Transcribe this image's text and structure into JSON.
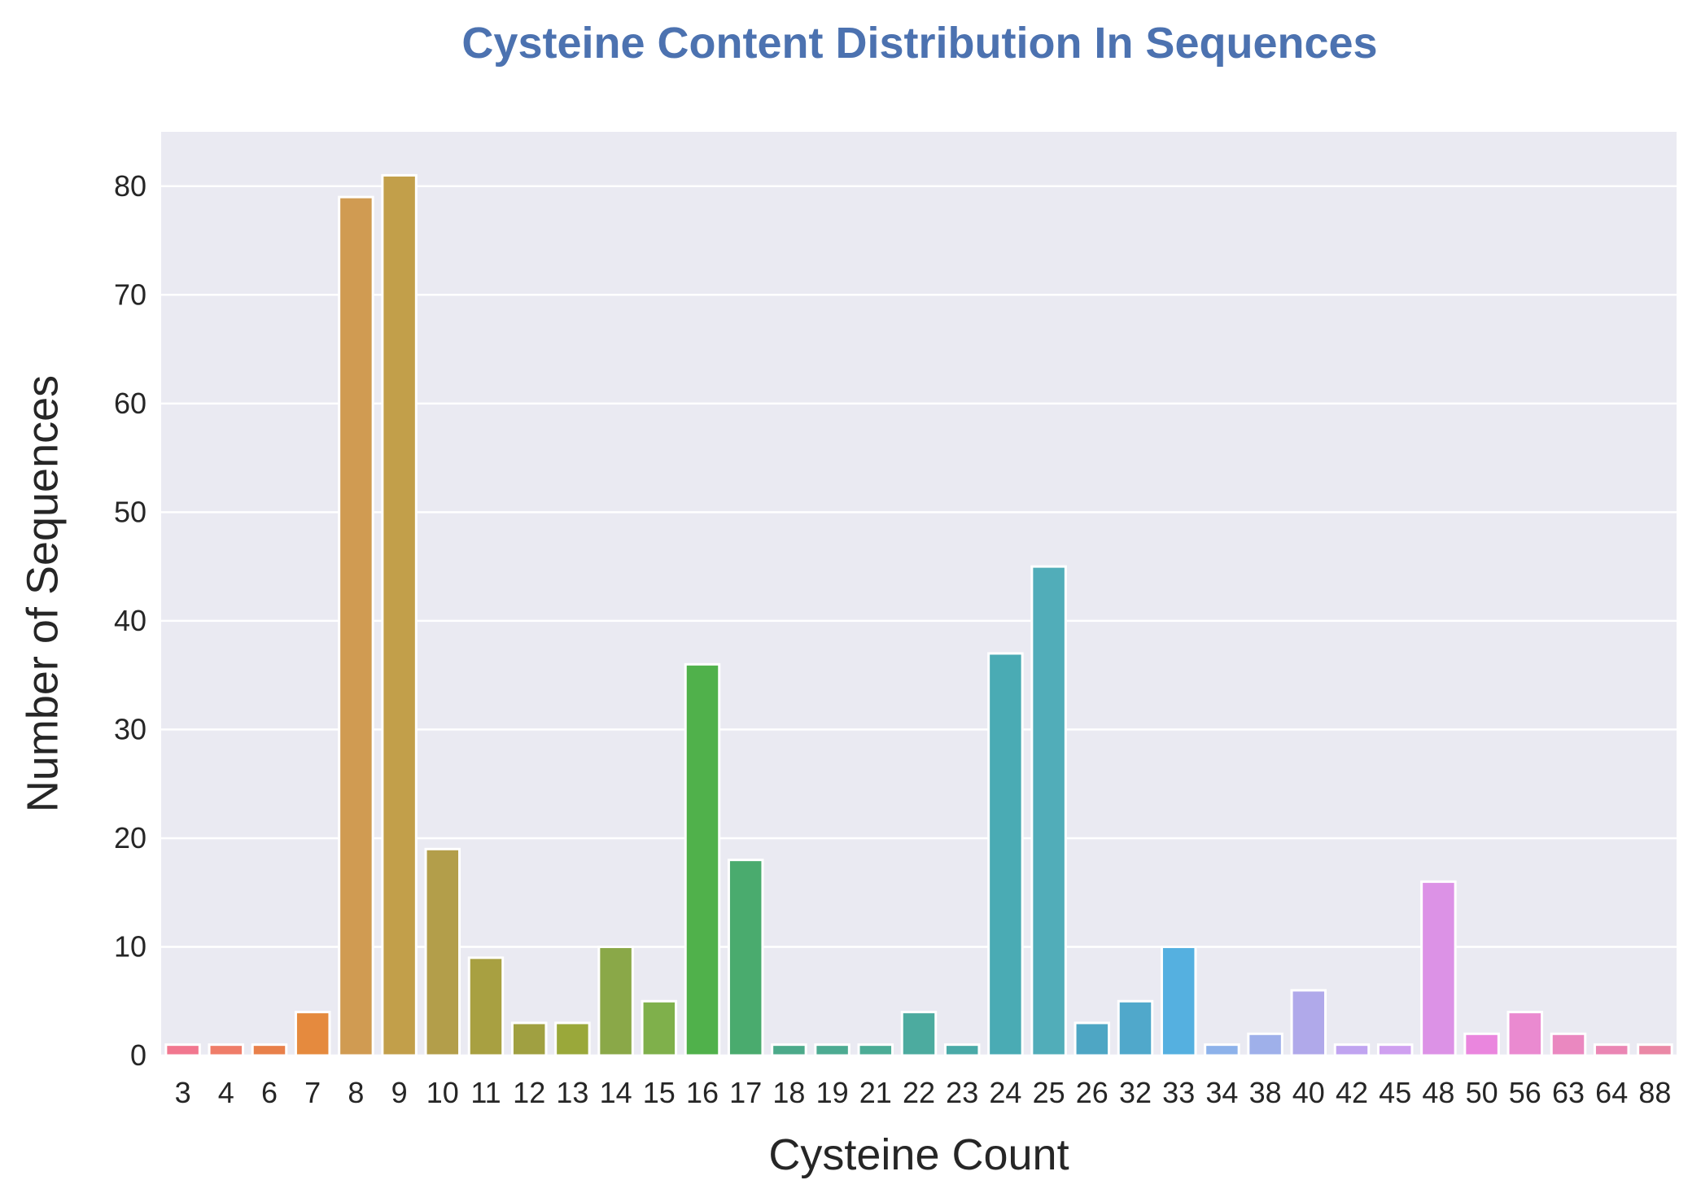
{
  "chart_data": {
    "type": "bar",
    "title": "Cysteine Content Distribution In Sequences",
    "xlabel": "Cysteine Count",
    "ylabel": "Number of Sequences",
    "categories": [
      "3",
      "4",
      "6",
      "7",
      "8",
      "9",
      "10",
      "11",
      "12",
      "13",
      "14",
      "15",
      "16",
      "17",
      "18",
      "19",
      "21",
      "22",
      "23",
      "24",
      "25",
      "26",
      "32",
      "33",
      "34",
      "38",
      "40",
      "42",
      "45",
      "48",
      "50",
      "56",
      "63",
      "64",
      "88"
    ],
    "values": [
      1,
      1,
      1,
      4,
      79,
      81,
      19,
      9,
      3,
      3,
      10,
      5,
      36,
      18,
      1,
      1,
      1,
      4,
      1,
      37,
      45,
      3,
      5,
      10,
      1,
      2,
      6,
      1,
      1,
      16,
      2,
      4,
      2,
      1,
      1
    ],
    "colors": [
      "#f1778f",
      "#ef7d69",
      "#e8804a",
      "#e58a3e",
      "#d09b52",
      "#c29f4a",
      "#b39e4a",
      "#a8a041",
      "#a0a041",
      "#9aa83a",
      "#8aa848",
      "#7fb04b",
      "#50b14b",
      "#4aab6e",
      "#4caa8a",
      "#4dab92",
      "#4cac96",
      "#4cab9f",
      "#4aaaa8",
      "#4aabb4",
      "#51adb9",
      "#4ea6c4",
      "#50a8cb",
      "#55b0e0",
      "#8db2ea",
      "#9fb0ea",
      "#b0a9ea",
      "#c0a4f0",
      "#cfa0f0",
      "#dc92e6",
      "#ea86de",
      "#ea8ad0",
      "#ea88c0",
      "#ea86b4",
      "#ea88a6"
    ],
    "ylim": [
      0,
      85
    ],
    "yticks": [
      0,
      10,
      20,
      30,
      40,
      50,
      60,
      70,
      80
    ],
    "grid": true,
    "background": "#eaeaf2"
  }
}
